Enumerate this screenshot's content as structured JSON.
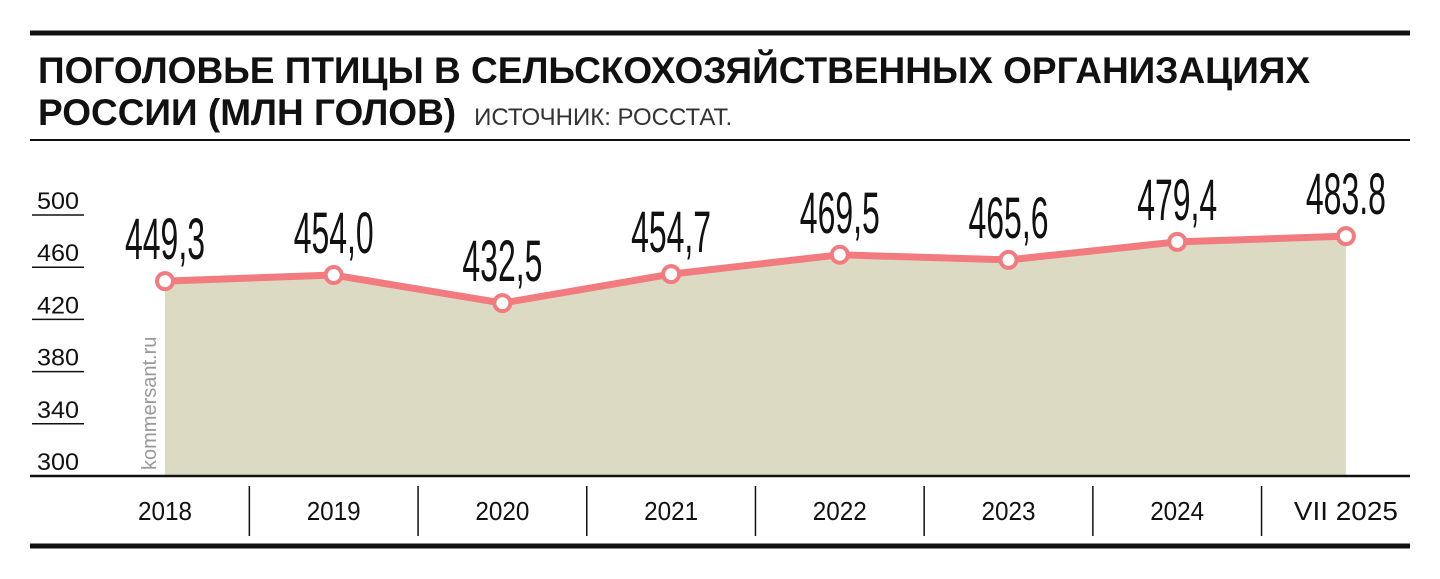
{
  "chart_data": {
    "type": "line",
    "title": "ПОГОЛОВЬЕ ПТИЦЫ В СЕЛЬСКОХОЗЯЙСТВЕННЫХ ОРГАНИЗАЦИЯХ РОССИИ (МЛН ГОЛОВ)",
    "source": "ИСТОЧНИК: РОССТАТ.",
    "watermark": "kommersant.ru",
    "categories": [
      "2018",
      "2019",
      "2020",
      "2021",
      "2022",
      "2023",
      "2024",
      "VII 2025"
    ],
    "series": [
      {
        "name": "Поголовье птицы",
        "color": "#f27b80",
        "area_color": "#dddac4",
        "values": [
          449.3,
          454.0,
          432.5,
          454.7,
          469.5,
          465.6,
          479.4,
          483.8
        ],
        "value_labels": [
          "449,3",
          "454,0",
          "432,5",
          "454,7",
          "469,5",
          "465,6",
          "479,4",
          "483.8"
        ]
      }
    ],
    "ylim": [
      300,
      500
    ],
    "yticks": [
      300,
      340,
      380,
      420,
      460,
      500
    ]
  }
}
